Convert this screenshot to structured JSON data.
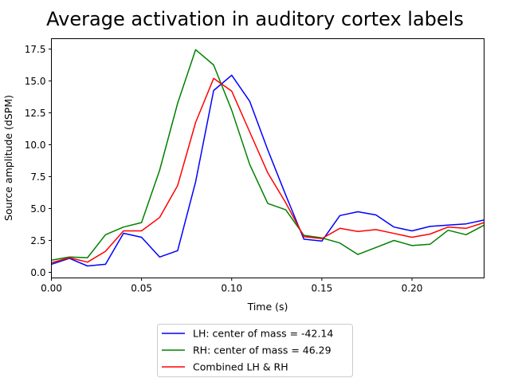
{
  "chart_data": {
    "type": "line",
    "title": "Average activation in auditory cortex labels",
    "xlabel": "Time (s)",
    "ylabel": "Source amplitude (dSPM)",
    "xlim": [
      0,
      0.24
    ],
    "ylim": [
      -0.44,
      18.31
    ],
    "xticks": [
      0.0,
      0.05,
      0.1,
      0.15,
      0.2
    ],
    "xtick_labels": [
      "0.00",
      "0.05",
      "0.10",
      "0.15",
      "0.20"
    ],
    "yticks": [
      0,
      2.5,
      5,
      7.5,
      10,
      12.5,
      15,
      17.5
    ],
    "ytick_labels": [
      "0.0",
      "2.5",
      "5.0",
      "7.5",
      "10.0",
      "12.5",
      "15.0",
      "17.5"
    ],
    "grid": false,
    "legend_position": "below",
    "x": [
      0,
      0.01,
      0.02,
      0.03,
      0.04,
      0.05,
      0.06,
      0.07,
      0.08,
      0.09,
      0.1,
      0.11,
      0.12,
      0.13,
      0.14,
      0.15,
      0.16,
      0.17,
      0.18,
      0.19,
      0.2,
      0.21,
      0.22,
      0.23,
      0.24
    ],
    "series": [
      {
        "name": "LH: center of mass = -42.14",
        "color": "#0000ff",
        "values": [
          0.63,
          1.1,
          0.5,
          0.63,
          3.06,
          2.75,
          1.2,
          1.7,
          7.1,
          14.25,
          15.45,
          13.4,
          9.6,
          6.05,
          2.6,
          2.45,
          4.45,
          4.75,
          4.5,
          3.55,
          3.25,
          3.6,
          3.7,
          3.8,
          4.1
        ]
      },
      {
        "name": "RH: center of mass = 46.29",
        "color": "#008000",
        "values": [
          0.95,
          1.2,
          1.15,
          2.95,
          3.55,
          3.9,
          8.0,
          13.25,
          17.45,
          16.25,
          12.7,
          8.45,
          5.4,
          4.9,
          2.9,
          2.7,
          2.3,
          1.4,
          1.95,
          2.5,
          2.1,
          2.2,
          3.3,
          2.95,
          3.7
        ]
      },
      {
        "name": "Combined LH & RH",
        "color": "#ff0000",
        "values": [
          0.75,
          1.15,
          0.8,
          1.65,
          3.25,
          3.25,
          4.3,
          6.8,
          11.75,
          15.2,
          14.2,
          11.0,
          7.8,
          5.45,
          2.8,
          2.65,
          3.45,
          3.2,
          3.35,
          3.05,
          2.75,
          3.0,
          3.55,
          3.45,
          3.9
        ]
      }
    ]
  }
}
